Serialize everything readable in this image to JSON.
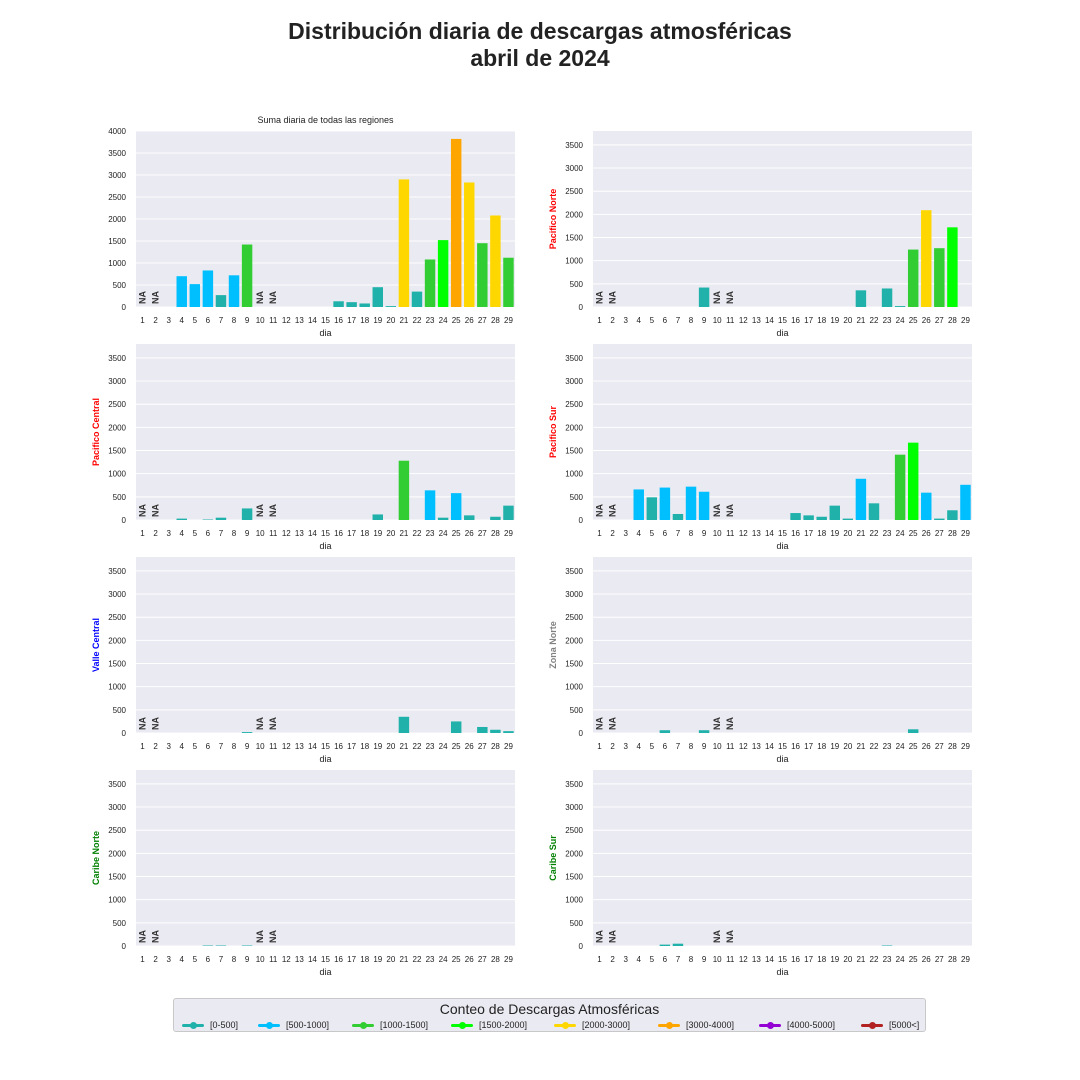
{
  "title_lines": [
    "Distribución diaria de descargas atmosféricas",
    "abril de 2024"
  ],
  "legend": {
    "title": "Conteo de Descargas Atmosféricas",
    "items": [
      {
        "label": "[0-500]",
        "color": "#20b2aa"
      },
      {
        "label": "[500-1000]",
        "color": "#00bfff"
      },
      {
        "label": "[1000-1500]",
        "color": "#32cd32"
      },
      {
        "label": "[1500-2000]",
        "color": "#00ff00"
      },
      {
        "label": "[2000-3000]",
        "color": "#ffd700"
      },
      {
        "label": "[3000-4000]",
        "color": "#ffa500"
      },
      {
        "label": "[4000-5000]",
        "color": "#9400d3"
      },
      {
        "label": "[5000<]",
        "color": "#b22222"
      }
    ]
  },
  "chart_data": [
    {
      "type": "bar",
      "title": "Suma diaria de todas las regiones",
      "ylabel": "",
      "ylabel_color": "",
      "xlabel": "dia",
      "categories": [
        "1",
        "2",
        "3",
        "4",
        "5",
        "6",
        "7",
        "8",
        "9",
        "10",
        "11",
        "12",
        "13",
        "14",
        "15",
        "16",
        "17",
        "18",
        "19",
        "20",
        "21",
        "22",
        "23",
        "24",
        "25",
        "26",
        "27",
        "28",
        "29"
      ],
      "values": [
        null,
        null,
        0,
        700,
        520,
        830,
        270,
        720,
        1420,
        null,
        null,
        0,
        0,
        0,
        0,
        130,
        110,
        80,
        450,
        20,
        2900,
        350,
        1080,
        1520,
        3820,
        2830,
        1450,
        2080,
        1120
      ],
      "na_days": [
        "1",
        "2",
        "10",
        "11"
      ],
      "ylim": [
        0,
        4000
      ],
      "yticks": [
        0,
        500,
        1000,
        1500,
        2000,
        2500,
        3000,
        3500,
        4000
      ],
      "grid": true
    },
    {
      "type": "bar",
      "title": "",
      "ylabel": "Pacifico Norte",
      "ylabel_color": "#ff0000",
      "xlabel": "dia",
      "categories": [
        "1",
        "2",
        "3",
        "4",
        "5",
        "6",
        "7",
        "8",
        "9",
        "10",
        "11",
        "12",
        "13",
        "14",
        "15",
        "16",
        "17",
        "18",
        "19",
        "20",
        "21",
        "22",
        "23",
        "24",
        "25",
        "26",
        "27",
        "28",
        "29"
      ],
      "values": [
        null,
        null,
        0,
        0,
        0,
        0,
        0,
        0,
        420,
        null,
        null,
        0,
        0,
        0,
        0,
        0,
        0,
        0,
        0,
        0,
        360,
        0,
        400,
        20,
        1240,
        2090,
        1270,
        1720,
        0
      ],
      "na_days": [
        "1",
        "2",
        "10",
        "11"
      ],
      "ylim": [
        0,
        3800
      ],
      "yticks": [
        0,
        500,
        1000,
        1500,
        2000,
        2500,
        3000,
        3500
      ],
      "grid": true
    },
    {
      "type": "bar",
      "title": "",
      "ylabel": "Pacifico Central",
      "ylabel_color": "#ff0000",
      "xlabel": "dia",
      "categories": [
        "1",
        "2",
        "3",
        "4",
        "5",
        "6",
        "7",
        "8",
        "9",
        "10",
        "11",
        "12",
        "13",
        "14",
        "15",
        "16",
        "17",
        "18",
        "19",
        "20",
        "21",
        "22",
        "23",
        "24",
        "25",
        "26",
        "27",
        "28",
        "29"
      ],
      "values": [
        null,
        null,
        0,
        30,
        0,
        10,
        50,
        0,
        250,
        null,
        null,
        0,
        0,
        0,
        0,
        0,
        0,
        0,
        120,
        0,
        1280,
        0,
        640,
        50,
        580,
        100,
        0,
        70,
        310
      ],
      "na_days": [
        "1",
        "2",
        "10",
        "11"
      ],
      "ylim": [
        0,
        3800
      ],
      "yticks": [
        0,
        500,
        1000,
        1500,
        2000,
        2500,
        3000,
        3500
      ],
      "grid": true
    },
    {
      "type": "bar",
      "title": "",
      "ylabel": "Pacifico Sur",
      "ylabel_color": "#ff0000",
      "xlabel": "dia",
      "categories": [
        "1",
        "2",
        "3",
        "4",
        "5",
        "6",
        "7",
        "8",
        "9",
        "10",
        "11",
        "12",
        "13",
        "14",
        "15",
        "16",
        "17",
        "18",
        "19",
        "20",
        "21",
        "22",
        "23",
        "24",
        "25",
        "26",
        "27",
        "28",
        "29"
      ],
      "values": [
        null,
        null,
        0,
        660,
        490,
        700,
        130,
        720,
        610,
        null,
        null,
        0,
        0,
        0,
        0,
        150,
        100,
        70,
        310,
        30,
        890,
        360,
        0,
        1410,
        1670,
        590,
        30,
        210,
        760
      ],
      "na_days": [
        "1",
        "2",
        "10",
        "11"
      ],
      "ylim": [
        0,
        3800
      ],
      "yticks": [
        0,
        500,
        1000,
        1500,
        2000,
        2500,
        3000,
        3500
      ],
      "grid": true
    },
    {
      "type": "bar",
      "title": "",
      "ylabel": "Valle Central",
      "ylabel_color": "#0000ff",
      "xlabel": "dia",
      "categories": [
        "1",
        "2",
        "3",
        "4",
        "5",
        "6",
        "7",
        "8",
        "9",
        "10",
        "11",
        "12",
        "13",
        "14",
        "15",
        "16",
        "17",
        "18",
        "19",
        "20",
        "21",
        "22",
        "23",
        "24",
        "25",
        "26",
        "27",
        "28",
        "29"
      ],
      "values": [
        null,
        null,
        0,
        0,
        0,
        0,
        0,
        0,
        20,
        null,
        null,
        0,
        0,
        0,
        0,
        0,
        0,
        0,
        0,
        0,
        350,
        0,
        0,
        0,
        250,
        0,
        130,
        70,
        40
      ],
      "na_days": [
        "1",
        "2",
        "10",
        "11"
      ],
      "ylim": [
        0,
        3800
      ],
      "yticks": [
        0,
        500,
        1000,
        1500,
        2000,
        2500,
        3000,
        3500
      ],
      "grid": true
    },
    {
      "type": "bar",
      "title": "",
      "ylabel": "Zona Norte",
      "ylabel_color": "#808080",
      "xlabel": "dia",
      "categories": [
        "1",
        "2",
        "3",
        "4",
        "5",
        "6",
        "7",
        "8",
        "9",
        "10",
        "11",
        "12",
        "13",
        "14",
        "15",
        "16",
        "17",
        "18",
        "19",
        "20",
        "21",
        "22",
        "23",
        "24",
        "25",
        "26",
        "27",
        "28",
        "29"
      ],
      "values": [
        null,
        null,
        0,
        0,
        0,
        60,
        0,
        0,
        60,
        null,
        null,
        0,
        0,
        0,
        0,
        0,
        0,
        0,
        0,
        0,
        0,
        0,
        0,
        0,
        80,
        0,
        0,
        0,
        0
      ],
      "na_days": [
        "1",
        "2",
        "10",
        "11"
      ],
      "ylim": [
        0,
        3800
      ],
      "yticks": [
        0,
        500,
        1000,
        1500,
        2000,
        2500,
        3000,
        3500
      ],
      "grid": true
    },
    {
      "type": "bar",
      "title": "",
      "ylabel": "Caribe Norte",
      "ylabel_color": "#008000",
      "xlabel": "dia",
      "categories": [
        "1",
        "2",
        "3",
        "4",
        "5",
        "6",
        "7",
        "8",
        "9",
        "10",
        "11",
        "12",
        "13",
        "14",
        "15",
        "16",
        "17",
        "18",
        "19",
        "20",
        "21",
        "22",
        "23",
        "24",
        "25",
        "26",
        "27",
        "28",
        "29"
      ],
      "values": [
        null,
        null,
        0,
        0,
        0,
        10,
        10,
        0,
        10,
        null,
        null,
        0,
        0,
        0,
        0,
        0,
        0,
        0,
        0,
        0,
        0,
        0,
        0,
        0,
        0,
        0,
        0,
        0,
        0
      ],
      "na_days": [
        "1",
        "2",
        "10",
        "11"
      ],
      "ylim": [
        0,
        3800
      ],
      "yticks": [
        0,
        500,
        1000,
        1500,
        2000,
        2500,
        3000,
        3500
      ],
      "grid": true
    },
    {
      "type": "bar",
      "title": "",
      "ylabel": "Caribe Sur",
      "ylabel_color": "#008000",
      "xlabel": "dia",
      "categories": [
        "1",
        "2",
        "3",
        "4",
        "5",
        "6",
        "7",
        "8",
        "9",
        "10",
        "11",
        "12",
        "13",
        "14",
        "15",
        "16",
        "17",
        "18",
        "19",
        "20",
        "21",
        "22",
        "23",
        "24",
        "25",
        "26",
        "27",
        "28",
        "29"
      ],
      "values": [
        null,
        null,
        0,
        0,
        0,
        30,
        50,
        0,
        0,
        null,
        null,
        0,
        0,
        0,
        0,
        0,
        0,
        0,
        0,
        0,
        0,
        0,
        10,
        0,
        0,
        0,
        0,
        0,
        0
      ],
      "na_days": [
        "1",
        "2",
        "10",
        "11"
      ],
      "ylim": [
        0,
        3800
      ],
      "yticks": [
        0,
        500,
        1000,
        1500,
        2000,
        2500,
        3000,
        3500
      ],
      "grid": true
    }
  ]
}
